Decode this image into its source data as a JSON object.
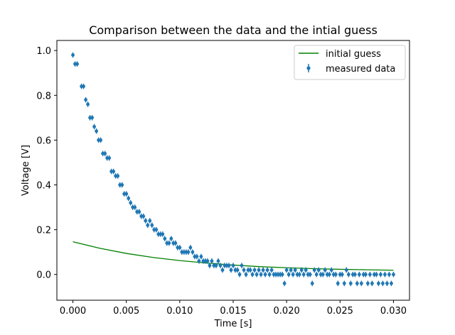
{
  "chart_data": {
    "type": "scatter",
    "title": "Comparison between the data and the intial guess",
    "xlabel": "Time [s]",
    "ylabel": "Voltage [V]",
    "xlim": [
      -0.0015,
      0.0315
    ],
    "ylim": [
      -0.115,
      1.045
    ],
    "x_ticks": [
      0.0,
      0.005,
      0.01,
      0.015,
      0.02,
      0.025,
      0.03
    ],
    "x_tick_labels": [
      "0.000",
      "0.005",
      "0.010",
      "0.015",
      "0.020",
      "0.025",
      "0.030"
    ],
    "y_ticks": [
      0.0,
      0.2,
      0.4,
      0.6,
      0.8,
      1.0
    ],
    "y_tick_labels": [
      "0.0",
      "0.2",
      "0.4",
      "0.6",
      "0.8",
      "1.0"
    ],
    "grid": false,
    "legend_position": "top-right",
    "series": [
      {
        "name": "initial guess",
        "kind": "line",
        "color": "#008000",
        "x": [
          0.0,
          0.0025,
          0.005,
          0.0075,
          0.01,
          0.0125,
          0.015,
          0.0175,
          0.02,
          0.0225,
          0.025,
          0.0275,
          0.03
        ],
        "y": [
          0.146,
          0.117,
          0.094,
          0.076,
          0.062,
          0.051,
          0.042,
          0.035,
          0.03,
          0.026,
          0.023,
          0.021,
          0.019
        ]
      },
      {
        "name": "measured data",
        "kind": "errorbar",
        "color": "#1f77b4",
        "error": 0.012,
        "x": [
          0.0,
          0.0002,
          0.0004,
          0.0008,
          0.001,
          0.0012,
          0.0014,
          0.0016,
          0.0018,
          0.002,
          0.0022,
          0.0024,
          0.0026,
          0.0028,
          0.003,
          0.0032,
          0.0034,
          0.0036,
          0.0038,
          0.004,
          0.0042,
          0.0044,
          0.0046,
          0.0048,
          0.005,
          0.0052,
          0.0054,
          0.0056,
          0.0058,
          0.006,
          0.0062,
          0.0064,
          0.0066,
          0.0068,
          0.007,
          0.0072,
          0.0074,
          0.0076,
          0.0078,
          0.008,
          0.0082,
          0.0084,
          0.0086,
          0.0088,
          0.009,
          0.0092,
          0.0094,
          0.0096,
          0.0098,
          0.01,
          0.0102,
          0.0104,
          0.0106,
          0.0108,
          0.011,
          0.0112,
          0.0114,
          0.0116,
          0.0118,
          0.012,
          0.0122,
          0.0124,
          0.0126,
          0.0128,
          0.013,
          0.0132,
          0.0134,
          0.0136,
          0.0138,
          0.014,
          0.0142,
          0.0144,
          0.0146,
          0.0148,
          0.015,
          0.0152,
          0.0154,
          0.0156,
          0.0158,
          0.016,
          0.0162,
          0.0164,
          0.0166,
          0.0168,
          0.017,
          0.0172,
          0.0174,
          0.0176,
          0.0178,
          0.018,
          0.0182,
          0.0184,
          0.0186,
          0.0188,
          0.019,
          0.0192,
          0.0194,
          0.0196,
          0.0198,
          0.02,
          0.0202,
          0.0204,
          0.0206,
          0.0208,
          0.021,
          0.0212,
          0.0214,
          0.0216,
          0.0218,
          0.022,
          0.0222,
          0.0224,
          0.0226,
          0.0228,
          0.023,
          0.0232,
          0.0234,
          0.0236,
          0.0238,
          0.024,
          0.0242,
          0.0244,
          0.0246,
          0.0248,
          0.025,
          0.0252,
          0.0254,
          0.0256,
          0.0258,
          0.026,
          0.0262,
          0.0264,
          0.0266,
          0.0268,
          0.027,
          0.0272,
          0.0274,
          0.0276,
          0.0278,
          0.028,
          0.0282,
          0.0284,
          0.0286,
          0.0288,
          0.029,
          0.0292,
          0.0294,
          0.0296,
          0.0298,
          0.03
        ],
        "y": [
          0.98,
          0.94,
          0.94,
          0.84,
          0.84,
          0.78,
          0.76,
          0.7,
          0.7,
          0.66,
          0.64,
          0.6,
          0.6,
          0.54,
          0.54,
          0.52,
          0.52,
          0.46,
          0.46,
          0.44,
          0.44,
          0.4,
          0.4,
          0.36,
          0.36,
          0.34,
          0.32,
          0.3,
          0.3,
          0.28,
          0.28,
          0.26,
          0.26,
          0.24,
          0.22,
          0.24,
          0.22,
          0.2,
          0.2,
          0.18,
          0.18,
          0.18,
          0.16,
          0.14,
          0.14,
          0.16,
          0.14,
          0.14,
          0.12,
          0.12,
          0.1,
          0.1,
          0.1,
          0.1,
          0.12,
          0.1,
          0.08,
          0.08,
          0.06,
          0.08,
          0.06,
          0.06,
          0.06,
          0.04,
          0.06,
          0.04,
          0.04,
          0.06,
          0.04,
          0.02,
          0.04,
          0.04,
          0.04,
          0.02,
          0.04,
          0.02,
          0.02,
          0.0,
          0.04,
          0.02,
          0.0,
          0.02,
          0.02,
          0.0,
          0.02,
          0.0,
          0.02,
          0.0,
          0.02,
          0.0,
          0.02,
          0.0,
          0.02,
          0.0,
          0.0,
          0.0,
          0.0,
          0.0,
          -0.04,
          0.02,
          0.0,
          0.02,
          0.0,
          0.02,
          0.0,
          0.0,
          0.02,
          0.0,
          0.02,
          0.0,
          0.0,
          -0.04,
          0.02,
          0.0,
          0.02,
          0.0,
          0.0,
          0.02,
          0.0,
          0.0,
          0.02,
          0.0,
          0.0,
          -0.04,
          0.0,
          0.0,
          -0.04,
          0.02,
          0.0,
          -0.04,
          0.0,
          0.0,
          -0.04,
          0.0,
          -0.04,
          0.0,
          0.0,
          -0.04,
          0.0,
          -0.04,
          0.0,
          0.0,
          -0.04,
          0.0,
          -0.04,
          0.0,
          -0.04,
          0.0,
          -0.04,
          0.0
        ]
      }
    ]
  }
}
